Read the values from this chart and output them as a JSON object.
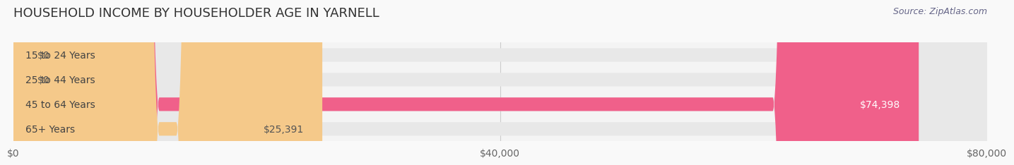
{
  "title": "HOUSEHOLD INCOME BY HOUSEHOLDER AGE IN YARNELL",
  "source": "Source: ZipAtlas.com",
  "categories": [
    "15 to 24 Years",
    "25 to 44 Years",
    "45 to 64 Years",
    "65+ Years"
  ],
  "values": [
    0,
    0,
    74398,
    25391
  ],
  "bar_colors": [
    "#6dcdc8",
    "#a89fd4",
    "#f0608a",
    "#f5c98a"
  ],
  "bar_bg_colors": [
    "#eeeeee",
    "#eeeeee",
    "#eeeeee",
    "#eeeeee"
  ],
  "label_colors": [
    "#555555",
    "#555555",
    "#ffffff",
    "#555555"
  ],
  "xlim": [
    0,
    80000
  ],
  "xticks": [
    0,
    40000,
    80000
  ],
  "xtick_labels": [
    "$0",
    "$40,000",
    "$80,000"
  ],
  "background_color": "#f9f9f9",
  "bar_bg_color": "#e8e8e8",
  "title_fontsize": 13,
  "tick_fontsize": 10,
  "label_fontsize": 10,
  "value_labels": [
    "$0",
    "$0",
    "$74,398",
    "$25,391"
  ]
}
